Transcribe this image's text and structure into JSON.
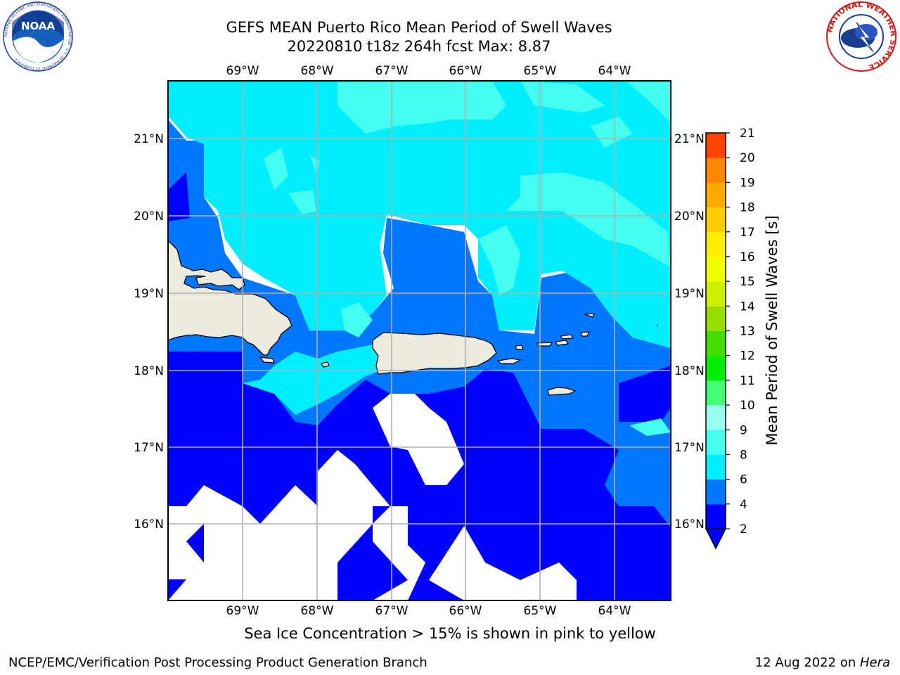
{
  "header": {
    "title_line1": "GEFS MEAN Puerto Rico Mean Period of Swell Waves",
    "title_line2": "20220810 t18z 264h fcst   Max: 8.87"
  },
  "map": {
    "lon_ticks": [
      "69°W",
      "68°W",
      "67°W",
      "66°W",
      "65°W",
      "64°W"
    ],
    "lat_ticks": [
      "21°N",
      "20°N",
      "19°N",
      "18°N",
      "17°N",
      "16°N"
    ],
    "land_color": "#ecebdd",
    "grid_color": "#b0b0b0"
  },
  "colorbar": {
    "label": "Mean Period of Swell Waves [s]",
    "ticks": [
      "2",
      "4",
      "6",
      "8",
      "9",
      "10",
      "11",
      "12",
      "13",
      "14",
      "15",
      "16",
      "17",
      "18",
      "19",
      "20",
      "21"
    ],
    "colors": [
      "#0000ff",
      "#0077ff",
      "#00eeff",
      "#44ffee",
      "#99ffee",
      "#44ff77",
      "#00ee00",
      "#44dd00",
      "#99dd00",
      "#ccee00",
      "#eeff00",
      "#ffee00",
      "#ffcc00",
      "#ffaa00",
      "#ff8800",
      "#ff4400",
      "#ff0000"
    ],
    "extend_color": "#0000ff"
  },
  "logos": {
    "noaa": "NOAA",
    "noaa_ring": "NATIONAL OCEANIC AND ATMOSPHERIC ADMINISTRATION · U.S. DEPARTMENT OF COMMERCE",
    "nws_ring": "NATIONAL WEATHER SERVICE"
  },
  "footer": {
    "note": "Sea Ice Concentration > 15% is shown in pink to yellow",
    "left": "NCEP/EMC/Verification Post Processing Product Generation Branch",
    "right_prefix": "12 Aug 2022 on ",
    "right_host": "Hera"
  }
}
